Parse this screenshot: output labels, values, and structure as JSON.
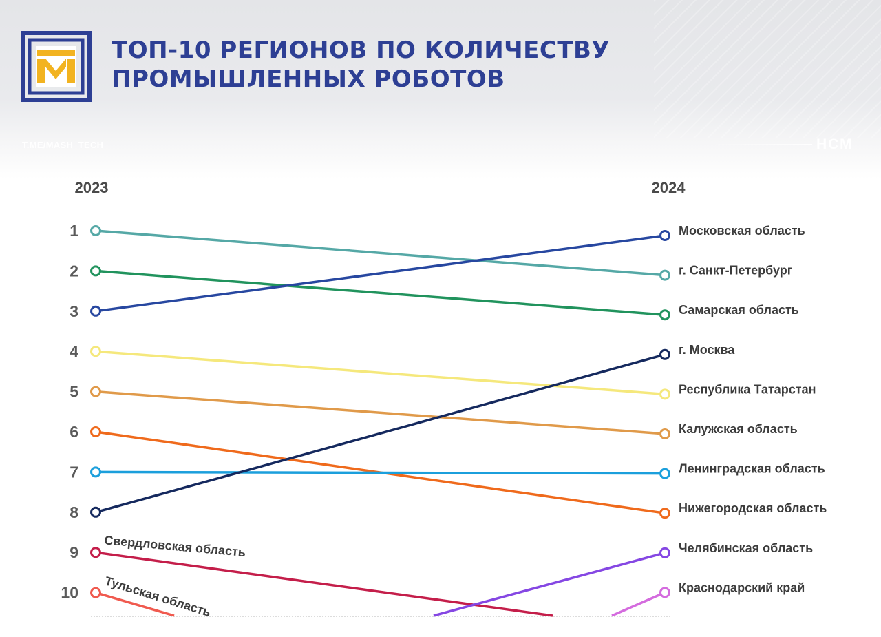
{
  "header": {
    "title_line1": "ТОП-10 РЕГИОНОВ ПО КОЛИЧЕСТВУ",
    "title_line2": "ПРОМЫШЛЕННЫХ РОБОТОВ",
    "channel": "T.ME/MASH_TECH",
    "brand": "НСМ",
    "logo_letters": "ТМ"
  },
  "colors": {
    "title": "#2d3f94",
    "logo_frame": "#2d3f94",
    "logo_letters": "#f2b320"
  },
  "chart_data": {
    "type": "line",
    "subtype": "slope",
    "title": "ТОП-10 РЕГИОНОВ ПО КОЛИЧЕСТВУ ПРОМЫШЛЕННЫХ РОБОТОВ",
    "x": [
      "2023",
      "2024"
    ],
    "ranks": [
      1,
      2,
      3,
      4,
      5,
      6,
      7,
      8,
      9,
      10
    ],
    "y_axis": "rank (1 = highest)",
    "series": [
      {
        "name": "г. Санкт-Петербург",
        "rank_2023": 1,
        "rank_2024": 2,
        "color": "#55a8a6"
      },
      {
        "name": "Самарская область",
        "rank_2023": 2,
        "rank_2024": 3,
        "color": "#21935d"
      },
      {
        "name": "Московская  область",
        "rank_2023": 3,
        "rank_2024": 1,
        "color": "#2747a0"
      },
      {
        "name": "Республика Татарстан",
        "rank_2023": 4,
        "rank_2024": 5,
        "color": "#f5e87c"
      },
      {
        "name": "Калужская область",
        "rank_2023": 5,
        "rank_2024": 6,
        "color": "#e09a4a"
      },
      {
        "name": "Нижегородская область",
        "rank_2023": 6,
        "rank_2024": 8,
        "color": "#ef6a1c"
      },
      {
        "name": "Ленинградская область",
        "rank_2023": 7,
        "rank_2024": 7,
        "color": "#1b9fdc"
      },
      {
        "name": "г. Москва",
        "rank_2023": 8,
        "rank_2024": 4,
        "color": "#15295e"
      },
      {
        "name": "Свердловская область",
        "rank_2023": 9,
        "rank_2024": null,
        "color": "#c41e4a"
      },
      {
        "name": "Тульская область",
        "rank_2023": 10,
        "rank_2024": null,
        "color": "#f05a4f"
      },
      {
        "name": "Челябинская область",
        "rank_2023": null,
        "rank_2024": 9,
        "color": "#8547e3"
      },
      {
        "name": "Краснодарский край",
        "rank_2023": null,
        "rank_2024": 10,
        "color": "#d46bde"
      }
    ]
  }
}
